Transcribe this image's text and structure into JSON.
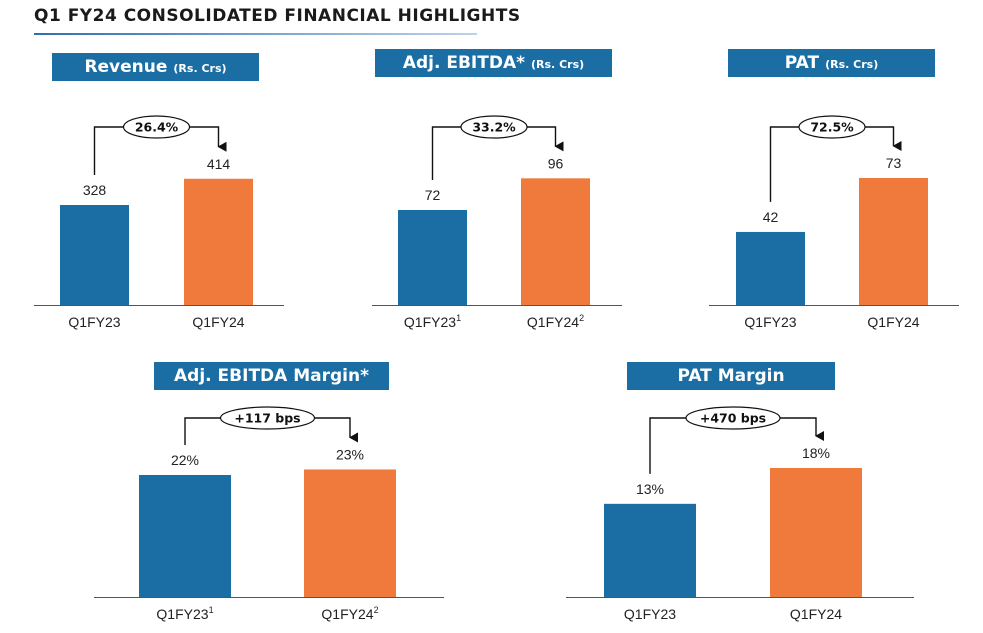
{
  "page": {
    "title": "Q1 FY24 CONSOLIDATED FINANCIAL HIGHLIGHTS"
  },
  "colors": {
    "prior": "#1b6ea3",
    "current": "#f07a3c",
    "badge": "#1b6ea3"
  },
  "chart_data": [
    {
      "type": "bar",
      "title": "Revenue",
      "unit": "(Rs. Crs)",
      "categories": [
        {
          "label": "Q1FY23",
          "sup": ""
        },
        {
          "label": "Q1FY24",
          "sup": ""
        }
      ],
      "values": [
        328,
        414
      ],
      "value_labels": [
        "328",
        "414"
      ],
      "change": "26.4%"
    },
    {
      "type": "bar",
      "title": "Adj. EBITDA*",
      "unit": "(Rs. Crs)",
      "categories": [
        {
          "label": "Q1FY23",
          "sup": "1"
        },
        {
          "label": "Q1FY24",
          "sup": "2"
        }
      ],
      "values": [
        72,
        96
      ],
      "value_labels": [
        "72",
        "96"
      ],
      "change": "33.2%"
    },
    {
      "type": "bar",
      "title": "PAT",
      "unit": "(Rs. Crs)",
      "categories": [
        {
          "label": "Q1FY23",
          "sup": ""
        },
        {
          "label": "Q1FY24",
          "sup": ""
        }
      ],
      "values": [
        42,
        73
      ],
      "value_labels": [
        "42",
        "73"
      ],
      "change": "72.5%"
    },
    {
      "type": "bar",
      "title": "Adj. EBITDA Margin*",
      "unit": "",
      "categories": [
        {
          "label": "Q1FY23",
          "sup": "1"
        },
        {
          "label": "Q1FY24",
          "sup": "2"
        }
      ],
      "values": [
        22,
        23
      ],
      "value_labels": [
        "22%",
        "23%"
      ],
      "change": "+117 bps"
    },
    {
      "type": "bar",
      "title": "PAT Margin",
      "unit": "",
      "categories": [
        {
          "label": "Q1FY23",
          "sup": ""
        },
        {
          "label": "Q1FY24",
          "sup": ""
        }
      ],
      "values": [
        13,
        18
      ],
      "value_labels": [
        "13%",
        "18%"
      ],
      "change": "+470 bps"
    }
  ]
}
